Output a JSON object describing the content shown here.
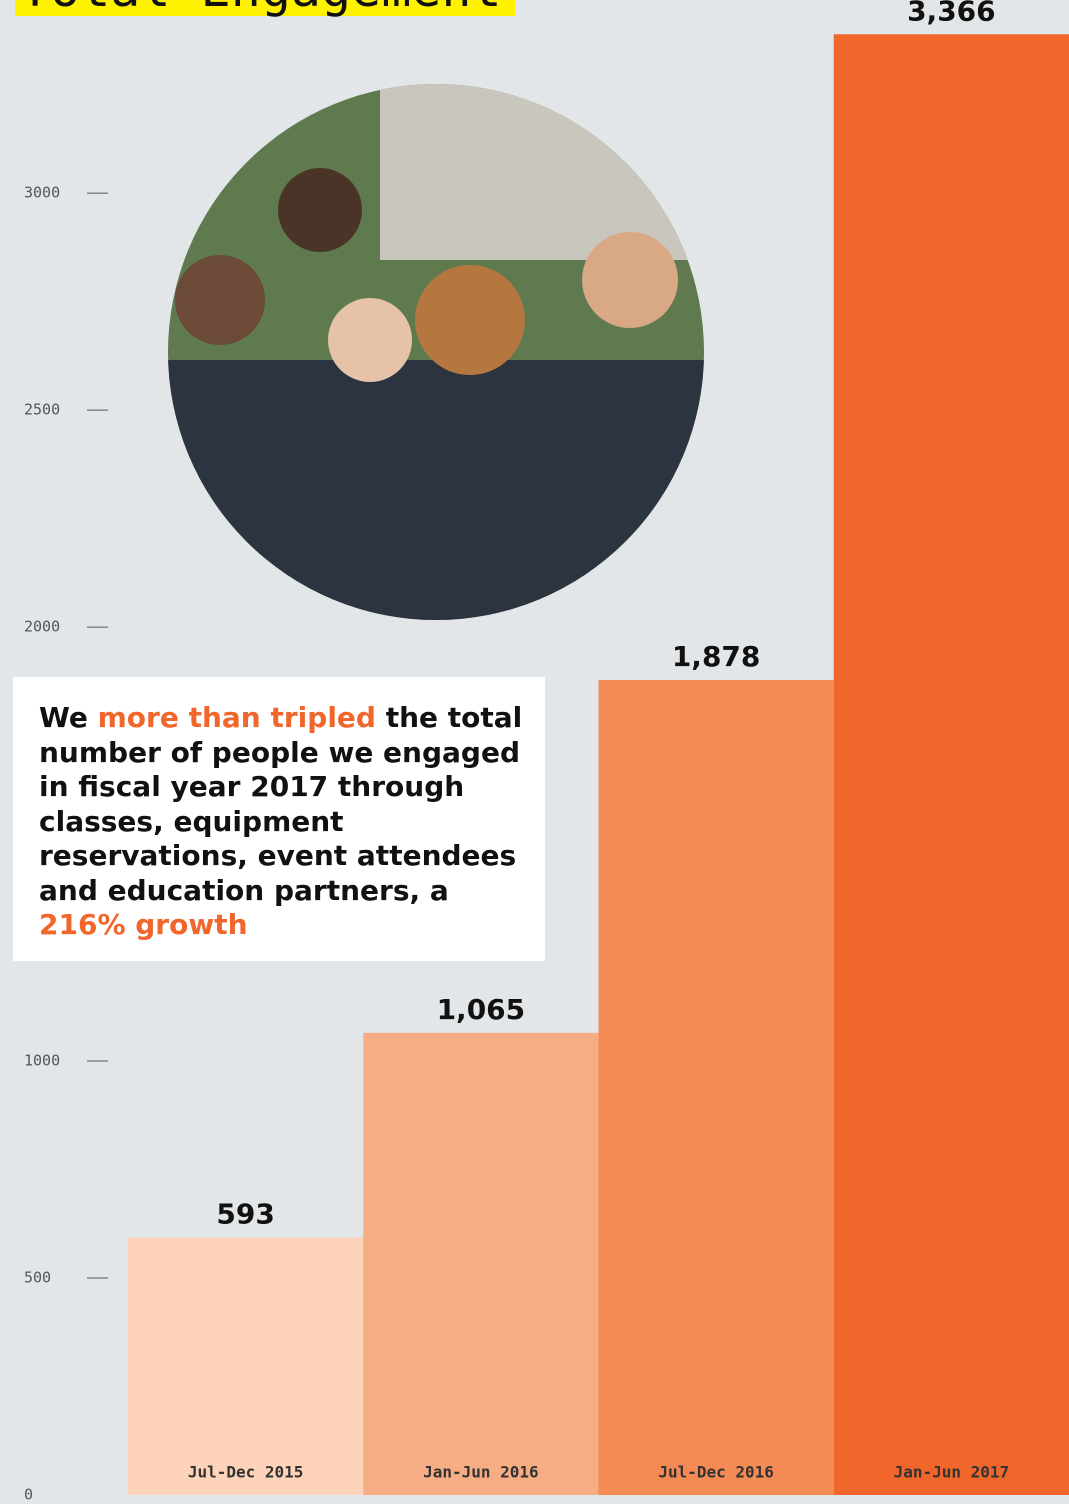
{
  "chart_data": {
    "type": "bar",
    "title": "Total Engagement",
    "categories": [
      "Jul-Dec 2015",
      "Jan-Jun 2016",
      "Jul-Dec 2016",
      "Jan-Jun 2017"
    ],
    "values": [
      593,
      1065,
      1878,
      3366
    ],
    "value_labels": [
      "593",
      "1,065",
      "1,878",
      "3,366"
    ],
    "colors": [
      "#fdd3b9",
      "#f7ad84",
      "#f58a55",
      "#f1662b"
    ],
    "ylim": [
      0,
      3445
    ],
    "yticks": [
      0,
      500,
      1000,
      2000,
      2500,
      3000
    ]
  },
  "callout": {
    "parts": [
      "We ",
      "more than tripled",
      " the total number of people we engaged in fiscal year 2017 through classes, equipment reservations, event attendees and education partners, a ",
      "216% growth"
    ]
  }
}
